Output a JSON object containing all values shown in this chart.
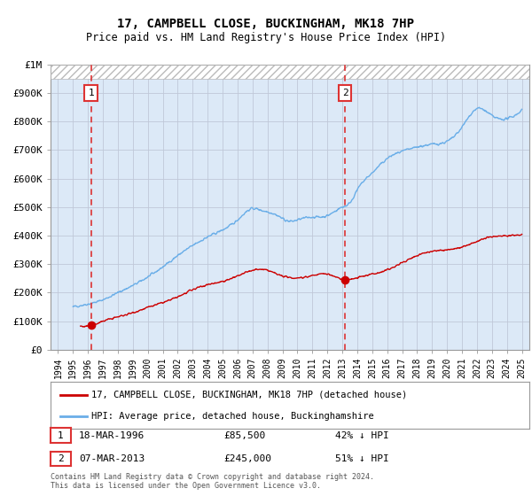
{
  "title": "17, CAMPBELL CLOSE, BUCKINGHAM, MK18 7HP",
  "subtitle": "Price paid vs. HM Land Registry's House Price Index (HPI)",
  "sale1_date": 1996.21,
  "sale1_price": 85500,
  "sale1_label": "1",
  "sale1_date_str": "18-MAR-1996",
  "sale1_price_str": "£85,500",
  "sale1_hpi_str": "42% ↓ HPI",
  "sale2_date": 2013.18,
  "sale2_price": 245000,
  "sale2_label": "2",
  "sale2_date_str": "07-MAR-2013",
  "sale2_price_str": "£245,000",
  "sale2_hpi_str": "51% ↓ HPI",
  "hpi_color": "#6aaee8",
  "price_color": "#cc0000",
  "vline_color": "#dd3333",
  "bg_color": "#dce9f7",
  "ylim": [
    0,
    1000000
  ],
  "xlim": [
    1993.5,
    2025.5
  ],
  "yticks": [
    0,
    100000,
    200000,
    300000,
    400000,
    500000,
    600000,
    700000,
    800000,
    900000,
    1000000
  ],
  "ytick_labels": [
    "£0",
    "£100K",
    "£200K",
    "£300K",
    "£400K",
    "£500K",
    "£600K",
    "£700K",
    "£800K",
    "£900K",
    "£1M"
  ],
  "xticks": [
    1994,
    1995,
    1996,
    1997,
    1998,
    1999,
    2000,
    2001,
    2002,
    2003,
    2004,
    2005,
    2006,
    2007,
    2008,
    2009,
    2010,
    2011,
    2012,
    2013,
    2014,
    2015,
    2016,
    2017,
    2018,
    2019,
    2020,
    2021,
    2022,
    2023,
    2024,
    2025
  ],
  "legend_line1": "17, CAMPBELL CLOSE, BUCKINGHAM, MK18 7HP (detached house)",
  "legend_line2": "HPI: Average price, detached house, Buckinghamshire",
  "footer": "Contains HM Land Registry data © Crown copyright and database right 2024.\nThis data is licensed under the Open Government Licence v3.0.",
  "hatch_threshold": 950000
}
